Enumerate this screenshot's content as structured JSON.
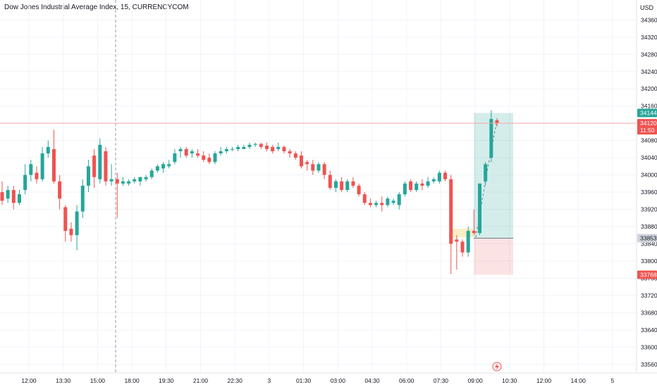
{
  "header": {
    "title": "Dow Jones Industrial Average Index, 15, CURRENCYCOM"
  },
  "axis": {
    "currency": "USD"
  },
  "colors": {
    "up": "#26a69a",
    "down": "#ef5350",
    "grid": "#f0f3fa",
    "price_line": "#f7a9a6",
    "axis_text": "#131722"
  },
  "chart_data": {
    "type": "candlestick",
    "title": "Dow Jones Industrial Average Index, 15, CURRENCYCOM",
    "ylim": [
      33540,
      34390
    ],
    "y_ticks": [
      34360,
      34320,
      34280,
      34240,
      34200,
      34160,
      34120,
      34080,
      34040,
      34000,
      33960,
      33920,
      33880,
      33840,
      33800,
      33760,
      33720,
      33680,
      33640,
      33600,
      33560
    ],
    "x_ticks": [
      "12:00",
      "13:30",
      "15:00",
      "18:00",
      "19:30",
      "21:00",
      "22:30",
      "3",
      "01:30",
      "03:00",
      "04:30",
      "06:00",
      "07:30",
      "09:00",
      "10:30",
      "12:00",
      "14:00",
      "5"
    ],
    "price_tags": [
      {
        "label": "34144",
        "price": 34144,
        "color": "#26a69a"
      },
      {
        "label": "34120",
        "sub": "11:50",
        "price": 34120,
        "color": "#ef5350"
      },
      {
        "label": "33853",
        "price": 33853,
        "color": "#d1d4dc"
      },
      {
        "label": "33768",
        "price": 33768,
        "color": "#ef5350"
      }
    ],
    "position": {
      "entry": 33853,
      "target": 34144,
      "stop": 33768
    },
    "candles": [
      {
        "o": 33960,
        "h": 33985,
        "l": 33930,
        "c": 33940
      },
      {
        "o": 33945,
        "h": 33975,
        "l": 33935,
        "c": 33965
      },
      {
        "o": 33965,
        "h": 33975,
        "l": 33920,
        "c": 33935
      },
      {
        "o": 33935,
        "h": 33965,
        "l": 33930,
        "c": 33955
      },
      {
        "o": 33965,
        "h": 34025,
        "l": 33955,
        "c": 34000
      },
      {
        "o": 34000,
        "h": 34035,
        "l": 33985,
        "c": 34025
      },
      {
        "o": 34005,
        "h": 34020,
        "l": 33980,
        "c": 33990
      },
      {
        "o": 33990,
        "h": 34065,
        "l": 33985,
        "c": 34050
      },
      {
        "o": 34050,
        "h": 34080,
        "l": 34040,
        "c": 34065
      },
      {
        "o": 34060,
        "h": 34105,
        "l": 33980,
        "c": 33985
      },
      {
        "o": 33985,
        "h": 34000,
        "l": 33920,
        "c": 33945
      },
      {
        "o": 33925,
        "h": 33930,
        "l": 33845,
        "c": 33870
      },
      {
        "o": 33875,
        "h": 33890,
        "l": 33845,
        "c": 33860
      },
      {
        "o": 33860,
        "h": 33930,
        "l": 33825,
        "c": 33915
      },
      {
        "o": 33915,
        "h": 33990,
        "l": 33900,
        "c": 33975
      },
      {
        "o": 33975,
        "h": 34035,
        "l": 33960,
        "c": 34020
      },
      {
        "o": 34045,
        "h": 34060,
        "l": 33970,
        "c": 33995
      },
      {
        "o": 33990,
        "h": 34085,
        "l": 33980,
        "c": 34070
      },
      {
        "o": 34055,
        "h": 34065,
        "l": 33975,
        "c": 33985
      },
      {
        "o": 33985,
        "h": 34025,
        "l": 33975,
        "c": 33990
      },
      {
        "o": 33990,
        "h": 34005,
        "l": 33900,
        "c": 33980
      },
      {
        "o": 33980,
        "h": 33995,
        "l": 33975,
        "c": 33985
      },
      {
        "o": 33980,
        "h": 33990,
        "l": 33975,
        "c": 33985
      },
      {
        "o": 33985,
        "h": 33995,
        "l": 33980,
        "c": 33990
      },
      {
        "o": 33985,
        "h": 33995,
        "l": 33975,
        "c": 33995
      },
      {
        "o": 33990,
        "h": 34000,
        "l": 33985,
        "c": 33995
      },
      {
        "o": 33995,
        "h": 34015,
        "l": 33990,
        "c": 34010
      },
      {
        "o": 34010,
        "h": 34025,
        "l": 34005,
        "c": 34020
      },
      {
        "o": 34015,
        "h": 34030,
        "l": 34005,
        "c": 34025
      },
      {
        "o": 34020,
        "h": 34035,
        "l": 34015,
        "c": 34025
      },
      {
        "o": 34030,
        "h": 34060,
        "l": 34025,
        "c": 34050
      },
      {
        "o": 34055,
        "h": 34065,
        "l": 34040,
        "c": 34060
      },
      {
        "o": 34060,
        "h": 34065,
        "l": 34040,
        "c": 34045
      },
      {
        "o": 34050,
        "h": 34060,
        "l": 34040,
        "c": 34055
      },
      {
        "o": 34050,
        "h": 34060,
        "l": 34040,
        "c": 34045
      },
      {
        "o": 34045,
        "h": 34055,
        "l": 34030,
        "c": 34035
      },
      {
        "o": 34040,
        "h": 34050,
        "l": 34025,
        "c": 34030
      },
      {
        "o": 34030,
        "h": 34055,
        "l": 34025,
        "c": 34050
      },
      {
        "o": 34050,
        "h": 34065,
        "l": 34045,
        "c": 34055
      },
      {
        "o": 34055,
        "h": 34065,
        "l": 34050,
        "c": 34060
      },
      {
        "o": 34060,
        "h": 34065,
        "l": 34055,
        "c": 34060
      },
      {
        "o": 34060,
        "h": 34070,
        "l": 34055,
        "c": 34065
      },
      {
        "o": 34060,
        "h": 34070,
        "l": 34060,
        "c": 34065
      },
      {
        "o": 34065,
        "h": 34075,
        "l": 34060,
        "c": 34070
      },
      {
        "o": 34070,
        "h": 34075,
        "l": 34065,
        "c": 34072
      },
      {
        "o": 34072,
        "h": 34075,
        "l": 34060,
        "c": 34065
      },
      {
        "o": 34068,
        "h": 34075,
        "l": 34055,
        "c": 34060
      },
      {
        "o": 34065,
        "h": 34070,
        "l": 34050,
        "c": 34055
      },
      {
        "o": 34060,
        "h": 34075,
        "l": 34055,
        "c": 34065
      },
      {
        "o": 34065,
        "h": 34068,
        "l": 34050,
        "c": 34055
      },
      {
        "o": 34055,
        "h": 34060,
        "l": 34040,
        "c": 34050
      },
      {
        "o": 34050,
        "h": 34055,
        "l": 34035,
        "c": 34040
      },
      {
        "o": 34045,
        "h": 34055,
        "l": 34015,
        "c": 34020
      },
      {
        "o": 34030,
        "h": 34035,
        "l": 34010,
        "c": 34025
      },
      {
        "o": 34025,
        "h": 34035,
        "l": 34000,
        "c": 34010
      },
      {
        "o": 34010,
        "h": 34030,
        "l": 34005,
        "c": 34025
      },
      {
        "o": 34025,
        "h": 34030,
        "l": 33990,
        "c": 34000
      },
      {
        "o": 34000,
        "h": 34010,
        "l": 33965,
        "c": 33970
      },
      {
        "o": 33970,
        "h": 33990,
        "l": 33960,
        "c": 33985
      },
      {
        "o": 33985,
        "h": 33995,
        "l": 33960,
        "c": 33965
      },
      {
        "o": 33965,
        "h": 33990,
        "l": 33960,
        "c": 33985
      },
      {
        "o": 33985,
        "h": 33995,
        "l": 33970,
        "c": 33975
      },
      {
        "o": 33975,
        "h": 33980,
        "l": 33950,
        "c": 33955
      },
      {
        "o": 33955,
        "h": 33960,
        "l": 33930,
        "c": 33935
      },
      {
        "o": 33935,
        "h": 33945,
        "l": 33925,
        "c": 33930
      },
      {
        "o": 33930,
        "h": 33940,
        "l": 33925,
        "c": 33935
      },
      {
        "o": 33935,
        "h": 33950,
        "l": 33915,
        "c": 33930
      },
      {
        "o": 33930,
        "h": 33950,
        "l": 33925,
        "c": 33945
      },
      {
        "o": 33935,
        "h": 33945,
        "l": 33930,
        "c": 33940
      },
      {
        "o": 33930,
        "h": 33960,
        "l": 33920,
        "c": 33955
      },
      {
        "o": 33955,
        "h": 33985,
        "l": 33950,
        "c": 33980
      },
      {
        "o": 33985,
        "h": 33990,
        "l": 33960,
        "c": 33965
      },
      {
        "o": 33965,
        "h": 33985,
        "l": 33960,
        "c": 33980
      },
      {
        "o": 33980,
        "h": 33990,
        "l": 33965,
        "c": 33975
      },
      {
        "o": 33975,
        "h": 33995,
        "l": 33970,
        "c": 33985
      },
      {
        "o": 33985,
        "h": 33995,
        "l": 33980,
        "c": 33990
      },
      {
        "o": 33985,
        "h": 34010,
        "l": 33980,
        "c": 34005
      },
      {
        "o": 34005,
        "h": 34010,
        "l": 33985,
        "c": 33990
      },
      {
        "o": 33990,
        "h": 34000,
        "l": 33770,
        "c": 33840
      },
      {
        "o": 33850,
        "h": 33860,
        "l": 33780,
        "c": 33845
      },
      {
        "o": 33845,
        "h": 33850,
        "l": 33810,
        "c": 33820
      },
      {
        "o": 33820,
        "h": 33880,
        "l": 33810,
        "c": 33870
      },
      {
        "o": 33870,
        "h": 33920,
        "l": 33860,
        "c": 33865
      },
      {
        "o": 33865,
        "h": 33980,
        "l": 33860,
        "c": 33980
      },
      {
        "o": 33985,
        "h": 34030,
        "l": 33975,
        "c": 34025
      },
      {
        "o": 34040,
        "h": 34150,
        "l": 34030,
        "c": 34130
      },
      {
        "o": 34127,
        "h": 34132,
        "l": 34112,
        "c": 34120
      }
    ]
  }
}
